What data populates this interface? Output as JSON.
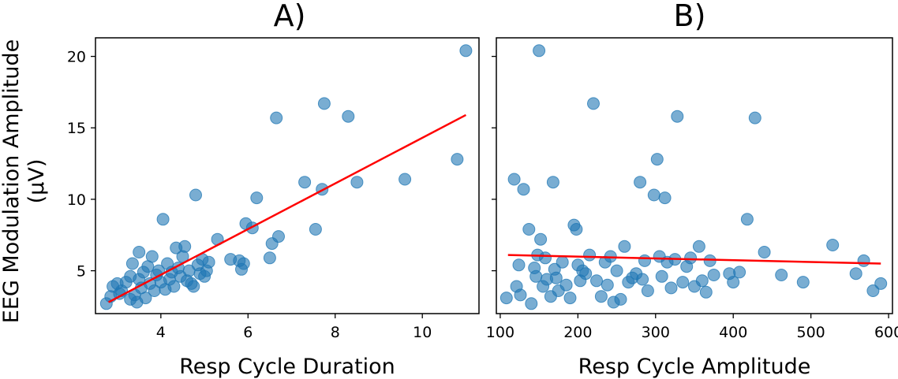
{
  "chart_data": [
    {
      "type": "scatter",
      "title": "A)",
      "xlabel": "Resp Cycle Duration",
      "ylabel": "EEG Modulation Amplitude",
      "ylabel_unit": "(µV)",
      "xlim": [
        2.5,
        11.3
      ],
      "ylim": [
        2.0,
        21.3
      ],
      "xticks": [
        "4",
        "6",
        "8",
        "10"
      ],
      "yticks": [
        "5",
        "10",
        "15",
        "20"
      ],
      "xtick_values": [
        4,
        6,
        8,
        10
      ],
      "ytick_values": [
        5,
        10,
        15,
        20
      ],
      "grid": false,
      "point_color": "#1f77b4",
      "line_color": "#ff0000",
      "fit_line": {
        "x": [
          2.8,
          11.0
        ],
        "y": [
          2.8,
          15.9
        ]
      },
      "points": [
        [
          2.75,
          2.7
        ],
        [
          2.85,
          3.2
        ],
        [
          2.9,
          3.9
        ],
        [
          3.0,
          4.1
        ],
        [
          3.05,
          3.4
        ],
        [
          3.1,
          3.6
        ],
        [
          3.2,
          4.2
        ],
        [
          3.3,
          3.0
        ],
        [
          3.3,
          4.6
        ],
        [
          3.35,
          5.5
        ],
        [
          3.4,
          3.3
        ],
        [
          3.45,
          2.8
        ],
        [
          3.5,
          6.3
        ],
        [
          3.5,
          4.4
        ],
        [
          3.55,
          3.8
        ],
        [
          3.6,
          4.9
        ],
        [
          3.65,
          3.1
        ],
        [
          3.7,
          5.3
        ],
        [
          3.75,
          4.1
        ],
        [
          3.8,
          6.0
        ],
        [
          3.85,
          3.6
        ],
        [
          3.9,
          4.7
        ],
        [
          3.95,
          5.0
        ],
        [
          4.0,
          4.2
        ],
        [
          4.05,
          8.6
        ],
        [
          4.1,
          3.7
        ],
        [
          4.15,
          5.5
        ],
        [
          4.2,
          4.4
        ],
        [
          4.25,
          4.9
        ],
        [
          4.3,
          3.9
        ],
        [
          4.35,
          6.6
        ],
        [
          4.4,
          5.2
        ],
        [
          4.45,
          4.6
        ],
        [
          4.5,
          6.0
        ],
        [
          4.55,
          6.7
        ],
        [
          4.6,
          4.3
        ],
        [
          4.65,
          5.0
        ],
        [
          4.7,
          4.1
        ],
        [
          4.75,
          3.9
        ],
        [
          4.8,
          10.3
        ],
        [
          4.85,
          5.4
        ],
        [
          4.9,
          4.8
        ],
        [
          4.95,
          5.8
        ],
        [
          5.0,
          4.6
        ],
        [
          5.05,
          5.0
        ],
        [
          5.1,
          5.6
        ],
        [
          5.3,
          7.2
        ],
        [
          5.6,
          5.8
        ],
        [
          5.8,
          5.7
        ],
        [
          5.85,
          5.1
        ],
        [
          5.9,
          5.5
        ],
        [
          5.95,
          8.3
        ],
        [
          6.1,
          8.0
        ],
        [
          6.2,
          10.1
        ],
        [
          6.5,
          5.9
        ],
        [
          6.55,
          6.9
        ],
        [
          6.65,
          15.7
        ],
        [
          6.7,
          7.4
        ],
        [
          7.3,
          11.2
        ],
        [
          7.55,
          7.9
        ],
        [
          7.7,
          10.7
        ],
        [
          7.75,
          16.7
        ],
        [
          8.3,
          15.8
        ],
        [
          8.5,
          11.2
        ],
        [
          9.6,
          11.4
        ],
        [
          10.8,
          12.8
        ],
        [
          11.0,
          20.4
        ]
      ]
    },
    {
      "type": "scatter",
      "title": "B)",
      "xlabel": "Resp Cycle Amplitude",
      "ylabel": "",
      "xlim": [
        95,
        605
      ],
      "ylim": [
        2.0,
        21.3
      ],
      "xticks": [
        "100",
        "200",
        "300",
        "400",
        "500",
        "600"
      ],
      "yticks": [],
      "xtick_values": [
        100,
        200,
        300,
        400,
        500,
        600
      ],
      "ytick_values": [
        5,
        10,
        15,
        20
      ],
      "grid": false,
      "point_color": "#1f77b4",
      "line_color": "#ff0000",
      "fit_line": {
        "x": [
          110,
          590
        ],
        "y": [
          6.1,
          5.5
        ]
      },
      "points": [
        [
          108,
          3.1
        ],
        [
          118,
          11.4
        ],
        [
          121,
          3.9
        ],
        [
          124,
          5.4
        ],
        [
          126,
          3.3
        ],
        [
          130,
          10.7
        ],
        [
          137,
          7.9
        ],
        [
          140,
          2.7
        ],
        [
          144,
          5.2
        ],
        [
          146,
          4.6
        ],
        [
          148,
          6.1
        ],
        [
          150,
          20.4
        ],
        [
          152,
          7.2
        ],
        [
          155,
          3.9
        ],
        [
          158,
          5.9
        ],
        [
          160,
          4.4
        ],
        [
          165,
          3.2
        ],
        [
          168,
          11.2
        ],
        [
          170,
          5.1
        ],
        [
          172,
          4.5
        ],
        [
          175,
          3.6
        ],
        [
          180,
          5.6
        ],
        [
          185,
          4.0
        ],
        [
          190,
          3.1
        ],
        [
          195,
          8.2
        ],
        [
          198,
          7.9
        ],
        [
          200,
          5.4
        ],
        [
          203,
          4.3
        ],
        [
          206,
          5.0
        ],
        [
          210,
          4.8
        ],
        [
          215,
          6.1
        ],
        [
          220,
          16.7
        ],
        [
          224,
          4.3
        ],
        [
          230,
          3.2
        ],
        [
          235,
          5.6
        ],
        [
          238,
          4.0
        ],
        [
          242,
          6.0
        ],
        [
          246,
          2.8
        ],
        [
          250,
          5.0
        ],
        [
          255,
          3.0
        ],
        [
          260,
          6.7
        ],
        [
          265,
          4.2
        ],
        [
          270,
          4.5
        ],
        [
          275,
          4.8
        ],
        [
          280,
          11.2
        ],
        [
          283,
          4.4
        ],
        [
          286,
          5.7
        ],
        [
          290,
          3.6
        ],
        [
          298,
          10.3
        ],
        [
          302,
          12.8
        ],
        [
          305,
          6.0
        ],
        [
          308,
          4.6
        ],
        [
          312,
          10.1
        ],
        [
          315,
          5.6
        ],
        [
          320,
          3.8
        ],
        [
          325,
          5.8
        ],
        [
          328,
          15.8
        ],
        [
          335,
          4.2
        ],
        [
          340,
          5.3
        ],
        [
          345,
          5.9
        ],
        [
          350,
          3.9
        ],
        [
          356,
          6.7
        ],
        [
          360,
          4.3
        ],
        [
          365,
          3.5
        ],
        [
          370,
          5.7
        ],
        [
          375,
          4.7
        ],
        [
          395,
          4.8
        ],
        [
          400,
          4.2
        ],
        [
          408,
          4.9
        ],
        [
          418,
          8.6
        ],
        [
          428,
          15.7
        ],
        [
          440,
          6.3
        ],
        [
          462,
          4.7
        ],
        [
          490,
          4.2
        ],
        [
          528,
          6.8
        ],
        [
          558,
          4.8
        ],
        [
          568,
          5.7
        ],
        [
          580,
          3.6
        ],
        [
          590,
          4.1
        ]
      ]
    }
  ]
}
